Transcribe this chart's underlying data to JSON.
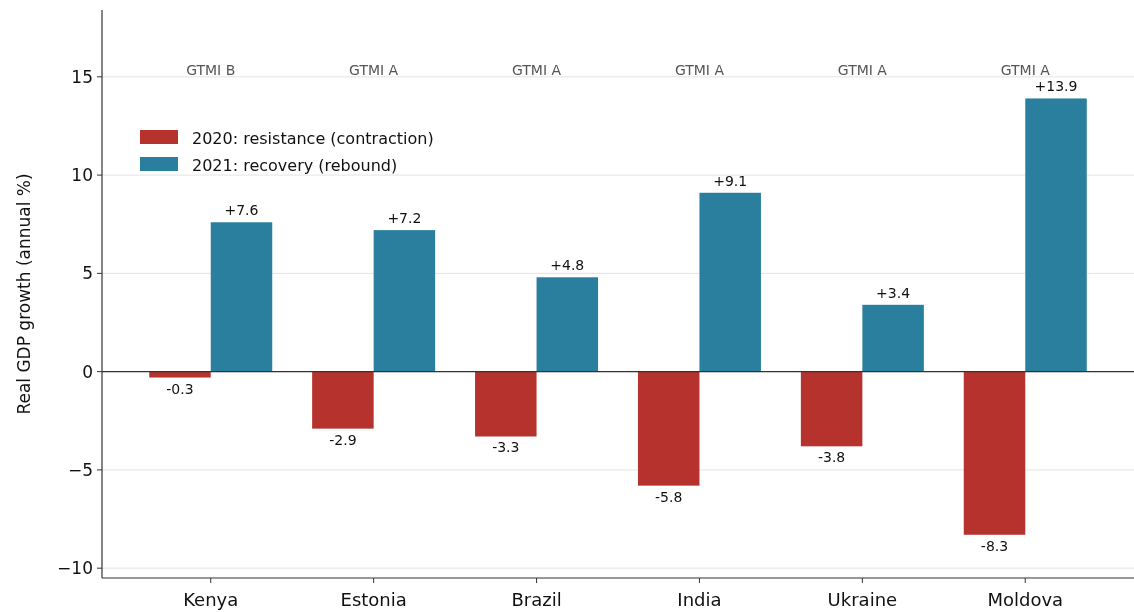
{
  "chart_data": {
    "type": "bar",
    "ylabel": "Real GDP growth (annual %)",
    "categories": [
      "Kenya",
      "Estonia",
      "Brazil",
      "India",
      "Ukraine",
      "Moldova"
    ],
    "series": [
      {
        "name": "2020: resistance (contraction)",
        "color": "#b5322d",
        "values": [
          -0.3,
          -2.9,
          -3.3,
          -5.8,
          -3.8,
          -8.3
        ],
        "value_labels": [
          "-0.3",
          "-2.9",
          "-3.3",
          "-5.8",
          "-3.8",
          "-8.3"
        ]
      },
      {
        "name": "2021: recovery (rebound)",
        "color": "#2a7f9f",
        "values": [
          7.6,
          7.2,
          4.8,
          9.1,
          3.4,
          13.9
        ],
        "value_labels": [
          "+7.6",
          "+7.2",
          "+4.8",
          "+9.1",
          "+3.4",
          "+13.9"
        ]
      }
    ],
    "annotations": [
      "GTMI B",
      "GTMI A",
      "GTMI A",
      "GTMI A",
      "GTMI A",
      "GTMI A"
    ],
    "ref_lines": [
      {
        "axis": "y",
        "value": 0,
        "color": "#333333"
      }
    ],
    "ylim": [
      -10.5,
      18.4
    ],
    "yticks": [
      -10,
      -5,
      0,
      5,
      10,
      15
    ],
    "grid": "y",
    "legend": "top left"
  }
}
